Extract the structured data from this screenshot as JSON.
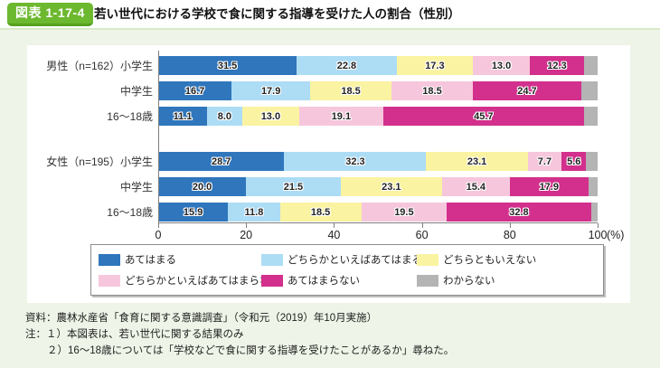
{
  "header": {
    "figure_label": "図表 1-17-4",
    "title": "若い世代における学校で食に関する指導を受けた人の割合（性別）"
  },
  "colors": {
    "accent_green": "#6cb82f",
    "accent_green_dark": "#55a01d",
    "page_background": "#eef5e8",
    "panel_background": "#ffffff",
    "axis_gray": "#7f7f7f"
  },
  "chart_data": {
    "type": "bar",
    "variant": "horizontal-stacked-100percent",
    "title": "若い世代における学校で食に関する指導を受けた人の割合（性別）",
    "xlim": [
      0,
      100
    ],
    "x_tick_values": [
      0,
      20,
      40,
      60,
      80,
      100
    ],
    "x_tick_labels": [
      "0",
      "20",
      "40",
      "60",
      "80",
      "100"
    ],
    "x_unit_suffix": "(%)",
    "legend_position": "bottom",
    "series": [
      {
        "name": "あてはまる",
        "color": "#2f76bc"
      },
      {
        "name": "どちらかといえばあてはまる",
        "color": "#addcf5"
      },
      {
        "name": "どちらともいえない",
        "color": "#faf3a1"
      },
      {
        "name": "どちらかといえばあてはまらない",
        "color": "#f6c6dc"
      },
      {
        "name": "あてはまらない",
        "color": "#d2308c"
      },
      {
        "name": "わからない",
        "color": "#b4b4b4"
      }
    ],
    "unlabeled_series": "わからない",
    "groups": [
      {
        "group": "男性（n=162）",
        "rows": [
          {
            "label": "男性（n=162）小学生",
            "values": [
              31.5,
              22.8,
              17.3,
              13.0,
              12.3,
              3.1
            ]
          },
          {
            "label": "中学生",
            "values": [
              16.7,
              17.9,
              18.5,
              18.5,
              24.7,
              3.7
            ]
          },
          {
            "label": "16～18歳",
            "values": [
              11.1,
              8.0,
              13.0,
              19.1,
              45.7,
              3.1
            ]
          }
        ]
      },
      {
        "group": "女性（n=195）",
        "rows": [
          {
            "label": "女性（n=195）小学生",
            "values": [
              28.7,
              32.3,
              23.1,
              7.7,
              5.6,
              2.6
            ]
          },
          {
            "label": "中学生",
            "values": [
              20.0,
              21.5,
              23.1,
              15.4,
              17.9,
              2.1
            ]
          },
          {
            "label": "16～18歳",
            "values": [
              15.9,
              11.8,
              18.5,
              19.5,
              32.8,
              1.5
            ]
          }
        ]
      }
    ]
  },
  "footer": {
    "source": "資料：農林水産省「食育に関する意識調査」（令和元（2019）年10月実施）",
    "note1": "注：１）本図表は、若い世代に関する結果のみ",
    "note2": "２）16～18歳については「学校などで食に関する指導を受けたことがあるか」尋ねた。"
  }
}
